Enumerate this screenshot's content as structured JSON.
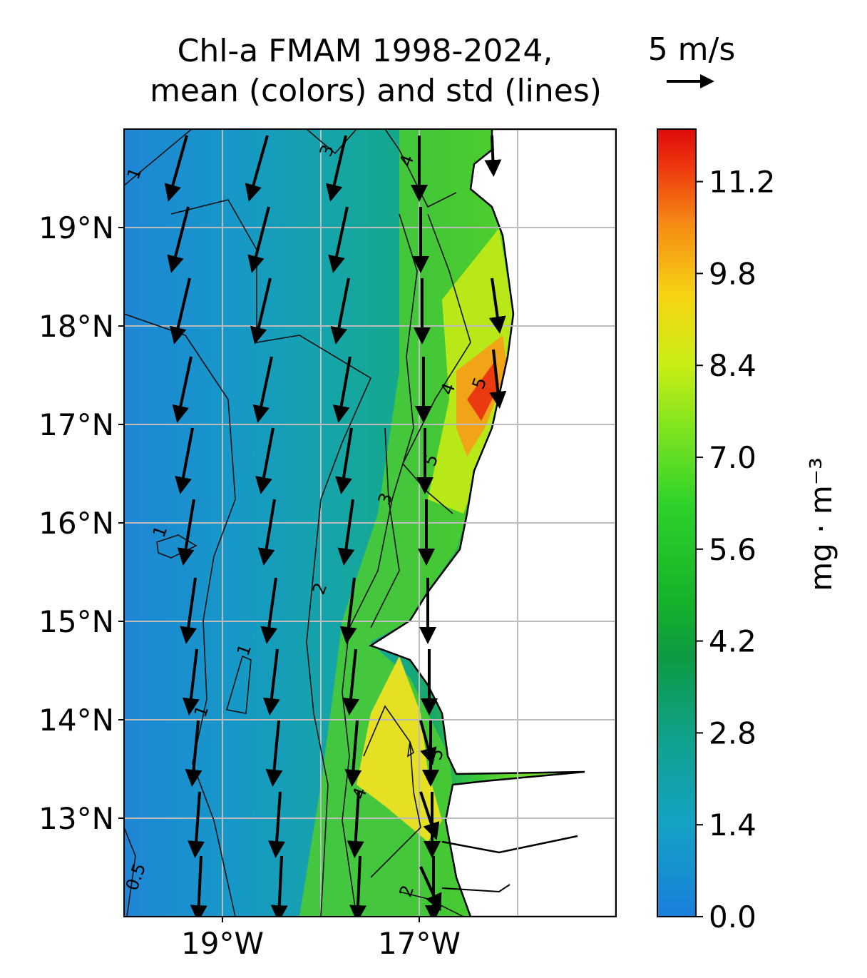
{
  "title_line1": "Chl-a FMAM 1998-2024,",
  "title_line2": "mean (colors) and std (lines)",
  "wind_key_label": "5 m/s",
  "map": {
    "lon_range": [
      -20,
      -15
    ],
    "lat_range": [
      12,
      20
    ],
    "lon_ticks": [
      {
        "value": -19,
        "label": "19°W"
      },
      {
        "value": -17,
        "label": "17°W"
      }
    ],
    "lon_grid": [
      -19,
      -18,
      -17,
      -16
    ],
    "lat_ticks": [
      {
        "value": 19,
        "label": "19°N"
      },
      {
        "value": 18,
        "label": "18°N"
      },
      {
        "value": 17,
        "label": "17°N"
      },
      {
        "value": 16,
        "label": "16°N"
      },
      {
        "value": 15,
        "label": "15°N"
      },
      {
        "value": 14,
        "label": "14°N"
      },
      {
        "value": 13,
        "label": "13°N"
      }
    ],
    "std_contour_labels": [
      "1",
      "3",
      "4",
      "1",
      "1",
      "1",
      "2",
      "3",
      "4",
      "5",
      "5",
      "4",
      "5",
      "0.5",
      "2"
    ]
  },
  "colorbar": {
    "label": "mg · m⁻³",
    "range": [
      0.0,
      12.0
    ],
    "ticks": [
      "0.0",
      "1.4",
      "2.8",
      "4.2",
      "5.6",
      "7.0",
      "8.4",
      "9.8",
      "11.2"
    ],
    "colors": [
      "#1a7fdc",
      "#14a3c4",
      "#0fa28a",
      "#139a3c",
      "#2cd22a",
      "#c0ec18",
      "#f7d314",
      "#f58a14",
      "#e31108"
    ]
  }
}
